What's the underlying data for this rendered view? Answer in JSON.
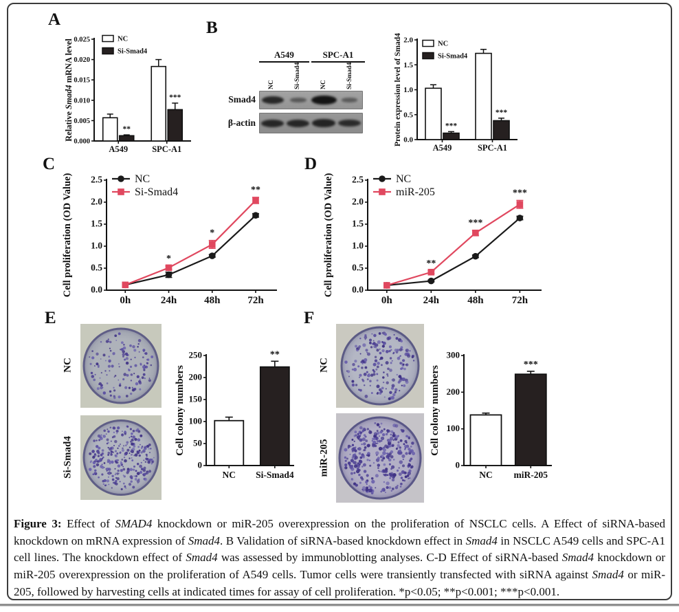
{
  "figure": {
    "panel_labels": [
      "A",
      "B",
      "C",
      "D",
      "E",
      "F"
    ],
    "colors": {
      "accent_pink": "#e0485f",
      "bar_dark": "#262020",
      "bar_white": "#ffffff",
      "axis": "#111111",
      "frame_border": "#3c3c3c"
    }
  },
  "caption": {
    "segments": [
      {
        "t": "Figure 3: ",
        "b": true
      },
      {
        "t": "Effect of "
      },
      {
        "t": "SMAD4",
        "i": true
      },
      {
        "t": " knockdown or miR-205 overexpression on the proliferation of NSCLC cells. A Effect of siRNA-based knockdown on mRNA expression of "
      },
      {
        "t": "Smad4",
        "i": true
      },
      {
        "t": ". B Validation of siRNA-based knockdown effect in "
      },
      {
        "t": "Smad4",
        "i": true
      },
      {
        "t": " in NSCLC A549 cells and SPC-A1 cell lines. The knockdown effect of "
      },
      {
        "t": "Smad4",
        "i": true
      },
      {
        "t": " was assessed by immunoblotting analyses. C-D Effect of siRNA-based "
      },
      {
        "t": "Smad4",
        "i": true
      },
      {
        "t": " knockdown or miR-205 overexpression on the proliferation of A549 cells. Tumor cells were transiently transfected with siRNA against "
      },
      {
        "t": "Smad4",
        "i": true
      },
      {
        "t": " or miR-205, followed by harvesting cells at indicated times for assay of cell proliferation. *p<0.05; **p<0.001; ***p<0.001."
      }
    ]
  },
  "panel_b_blot": {
    "cell_lines": [
      "A549",
      "SPC-A1"
    ],
    "lane_labels": [
      "NC",
      "Si-Smad4",
      "NC",
      "Si-Smad4"
    ],
    "row_labels": [
      "Smad4",
      "β-actin"
    ],
    "band_intensities": {
      "smad4": [
        1.0,
        0.42,
        1.35,
        0.38
      ],
      "beta_actin": [
        1.0,
        1.0,
        1.05,
        0.95
      ]
    }
  },
  "panel_e_images": {
    "labels": [
      "NC",
      "Si-Smad4"
    ],
    "colony_counts": [
      102,
      224
    ]
  },
  "panel_f_images": {
    "labels": [
      "NC",
      "miR-205"
    ],
    "colony_counts": [
      138,
      249
    ]
  },
  "dish_style": {
    "e_nc": {
      "inner": "#aeb2ba",
      "mid": "#a3a7b2",
      "edge": "#8e90a4",
      "rim": "#5f5e86",
      "bg": "#c7c9bc",
      "dotScale": 1.0,
      "dots": [
        "#4e4192",
        "#5d52a2",
        "#433686",
        "#6c63ae"
      ]
    },
    "e_si": {
      "inner": "#b2b6c0",
      "mid": "#a6a9b6",
      "edge": "#8f91a6",
      "rim": "#5f5e86",
      "bg": "#c6c8bb",
      "dotScale": 1.05,
      "dots": [
        "#4e4192",
        "#5d52a2",
        "#433686",
        "#6c63ae"
      ]
    },
    "f_nc": {
      "inner": "#b4b7c4",
      "mid": "#a9abbc",
      "edge": "#9193aa",
      "rim": "#5c5b85",
      "bg": "#cac9c0",
      "dotScale": 1.15,
      "dots": [
        "#4a3d90",
        "#5a4e9e",
        "#3f3284",
        "#6a60ac"
      ]
    },
    "f_mir": {
      "inner": "#b3b0c6",
      "mid": "#a7a3bd",
      "edge": "#8f8bab",
      "rim": "#5a5787",
      "bg": "#c5c3c8",
      "dotScale": 1.2,
      "dots": [
        "#4a3d90",
        "#5a4e9e",
        "#3f3284",
        "#6a60ac"
      ]
    }
  },
  "chart_data": [
    {
      "id": "chart-a",
      "panel": "A",
      "type": "bar",
      "categories": [
        "A549",
        "SPC-A1"
      ],
      "series": [
        {
          "name": "NC",
          "fill": "#ffffff",
          "values": [
            0.0057,
            0.0183
          ],
          "errors": [
            0.0009,
            0.0017
          ],
          "sig": [
            "",
            ""
          ]
        },
        {
          "name": "Si-Smad4",
          "fill": "#262020",
          "values": [
            0.0013,
            0.0077
          ],
          "errors": [
            0.0002,
            0.0016
          ],
          "sig": [
            "**",
            "***"
          ]
        }
      ],
      "ylabel": "Relative Smad4 mRNA level",
      "ylabel_segments": [
        {
          "t": "Relative "
        },
        {
          "t": "Smad4",
          "i": true
        },
        {
          "t": " mRNA level"
        }
      ],
      "xlabel": "",
      "ylim": [
        0,
        0.025
      ],
      "ytick_step": 0.005,
      "ydecimals": 3,
      "legend_position": "top-left",
      "grid": false
    },
    {
      "id": "chart-b",
      "panel": "B",
      "type": "bar",
      "categories": [
        "A549",
        "SPC-A1"
      ],
      "series": [
        {
          "name": "NC",
          "fill": "#ffffff",
          "values": [
            1.03,
            1.73
          ],
          "errors": [
            0.07,
            0.08
          ],
          "sig": [
            "",
            ""
          ]
        },
        {
          "name": "Si-Smad4",
          "fill": "#262020",
          "values": [
            0.13,
            0.38
          ],
          "errors": [
            0.03,
            0.05
          ],
          "sig": [
            "***",
            "***"
          ]
        }
      ],
      "ylabel": "Protein expression level of Smad4",
      "ylabel_segments": [
        {
          "t": "Protein expression level of Smad4"
        }
      ],
      "xlabel": "",
      "ylim": [
        0,
        2.0
      ],
      "ytick_step": 0.5,
      "ydecimals": 1,
      "legend_position": "top-left",
      "grid": false
    },
    {
      "id": "chart-c",
      "panel": "C",
      "type": "line",
      "x_categories": [
        "0h",
        "24h",
        "48h",
        "72h"
      ],
      "series": [
        {
          "name": "NC",
          "color": "#1a1a1a",
          "marker": "circle",
          "values": [
            0.12,
            0.35,
            0.78,
            1.7
          ],
          "errors": [
            0,
            0.06,
            0.03,
            0.04
          ]
        },
        {
          "name": "Si-Smad4",
          "color": "#e0485f",
          "marker": "square",
          "values": [
            0.12,
            0.51,
            1.04,
            2.04
          ],
          "errors": [
            0,
            0.04,
            0.09,
            0.07
          ]
        }
      ],
      "sig_labels": [
        "",
        "*",
        "*",
        "**"
      ],
      "ylabel": "Cell proliferation (OD Value)",
      "xlabel": "",
      "ylim": [
        0,
        2.5
      ],
      "ytick_step": 0.5,
      "ydecimals": 1,
      "legend_position": "top-left",
      "grid": false
    },
    {
      "id": "chart-d",
      "panel": "D",
      "type": "line",
      "x_categories": [
        "0h",
        "24h",
        "48h",
        "72h"
      ],
      "series": [
        {
          "name": "NC",
          "color": "#1a1a1a",
          "marker": "circle",
          "values": [
            0.11,
            0.21,
            0.77,
            1.64
          ],
          "errors": [
            0,
            0.02,
            0.03,
            0.04
          ]
        },
        {
          "name": "miR-205",
          "color": "#e0485f",
          "marker": "square",
          "values": [
            0.11,
            0.41,
            1.3,
            1.95
          ],
          "errors": [
            0,
            0.03,
            0.06,
            0.09
          ]
        }
      ],
      "sig_labels": [
        "",
        "**",
        "***",
        "***"
      ],
      "ylabel": "Cell proliferation (OD Value)",
      "xlabel": "",
      "ylim": [
        0,
        2.5
      ],
      "ytick_step": 0.5,
      "ydecimals": 1,
      "legend_position": "top-left",
      "grid": false
    },
    {
      "id": "chart-e",
      "panel": "E",
      "type": "bar_simple",
      "categories": [
        "NC",
        "Si-Smad4"
      ],
      "values": [
        102,
        224
      ],
      "errors": [
        8,
        13
      ],
      "fills": [
        "#ffffff",
        "#262020"
      ],
      "sig": [
        "",
        "**"
      ],
      "ylabel": "Cell colony numbers",
      "xlabel": "",
      "ylim": [
        0,
        250
      ],
      "ytick_step": 50,
      "ydecimals": 0,
      "grid": false
    },
    {
      "id": "chart-f",
      "panel": "F",
      "type": "bar_simple",
      "categories": [
        "NC",
        "miR-205"
      ],
      "values": [
        138,
        249
      ],
      "errors": [
        5,
        8
      ],
      "fills": [
        "#ffffff",
        "#262020"
      ],
      "sig": [
        "",
        "***"
      ],
      "ylabel": "Cell colony numbers",
      "xlabel": "",
      "ylim": [
        0,
        300
      ],
      "ytick_step": 100,
      "ydecimals": 0,
      "grid": false
    }
  ]
}
